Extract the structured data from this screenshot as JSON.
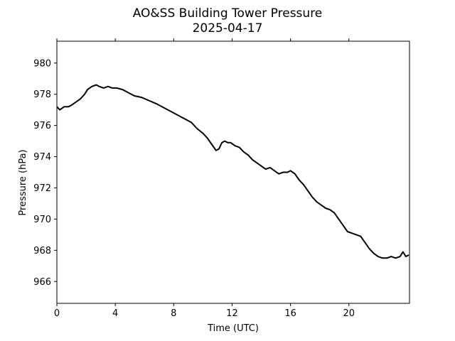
{
  "chart_data": {
    "type": "line",
    "title": "AO&SS Building Tower Pressure",
    "subtitle": "2025-04-17",
    "xlabel": "Time (UTC)",
    "ylabel": "Pressure (hPa)",
    "xlim": [
      0,
      24.15
    ],
    "ylim": [
      964.6,
      981.4
    ],
    "xticks": [
      0,
      4,
      8,
      12,
      16,
      20
    ],
    "xtick_labels": [
      "0",
      "4",
      "8",
      "12",
      "16",
      "20"
    ],
    "yticks": [
      966,
      968,
      970,
      972,
      974,
      976,
      978,
      980
    ],
    "ytick_labels": [
      "966",
      "968",
      "970",
      "972",
      "974",
      "976",
      "978",
      "980"
    ],
    "grid": false,
    "legend": "none",
    "series": [
      {
        "color": "#000000",
        "x": [
          0,
          0.2,
          0.5,
          0.8,
          1.0,
          1.3,
          1.6,
          1.9,
          2.1,
          2.4,
          2.7,
          2.9,
          3.2,
          3.5,
          3.8,
          4.1,
          4.5,
          4.9,
          5.3,
          5.8,
          6.3,
          6.8,
          7.2,
          7.6,
          8.0,
          8.4,
          8.8,
          9.2,
          9.6,
          10.0,
          10.3,
          10.6,
          10.9,
          11.1,
          11.3,
          11.5,
          11.7,
          11.9,
          12.2,
          12.5,
          12.8,
          13.1,
          13.4,
          13.7,
          14.0,
          14.3,
          14.6,
          14.9,
          15.2,
          15.5,
          15.8,
          16.0,
          16.3,
          16.6,
          16.9,
          17.2,
          17.5,
          17.8,
          18.1,
          18.4,
          18.7,
          19.0,
          19.3,
          19.6,
          19.9,
          20.2,
          20.5,
          20.8,
          21.1,
          21.4,
          21.7,
          22.0,
          22.3,
          22.6,
          22.9,
          23.2,
          23.5,
          23.7,
          23.9,
          24.1
        ],
        "y": [
          977.2,
          977.0,
          977.2,
          977.2,
          977.3,
          977.5,
          977.7,
          978.0,
          978.3,
          978.5,
          978.6,
          978.5,
          978.4,
          978.5,
          978.4,
          978.4,
          978.3,
          978.1,
          977.9,
          977.8,
          977.6,
          977.4,
          977.2,
          977.0,
          976.8,
          976.6,
          976.4,
          976.2,
          975.8,
          975.5,
          975.2,
          974.8,
          974.4,
          974.5,
          974.9,
          975.0,
          974.9,
          974.9,
          974.7,
          974.6,
          974.3,
          974.1,
          973.8,
          973.6,
          973.4,
          973.2,
          973.3,
          973.1,
          972.9,
          973.0,
          973.0,
          973.1,
          972.9,
          972.5,
          972.2,
          971.8,
          971.4,
          971.1,
          970.9,
          970.7,
          970.6,
          970.4,
          970.0,
          969.6,
          969.2,
          969.1,
          969.0,
          968.9,
          968.5,
          968.1,
          967.8,
          967.6,
          967.5,
          967.5,
          967.6,
          967.5,
          967.6,
          967.9,
          967.6,
          967.7
        ]
      }
    ]
  }
}
